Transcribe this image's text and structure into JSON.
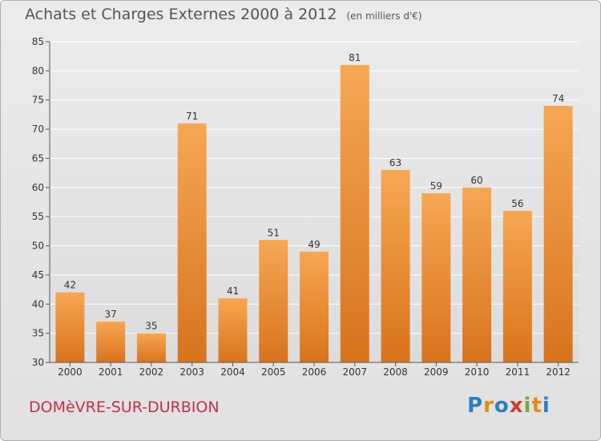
{
  "title": "Achats et Charges Externes 2000 à 2012",
  "unit_note": "(en milliers d'€)",
  "commune": "DOMèVRE-SUR-DURBION",
  "logo": {
    "letters": [
      "P",
      "r",
      "o",
      "x",
      "i",
      "t",
      "i"
    ],
    "colors": [
      "#2a7fc2",
      "#e28b1b",
      "#2a7fc2",
      "#d23b2a",
      "#7aa83a",
      "#e28b1b",
      "#2a7fc2"
    ]
  },
  "chart_data": {
    "type": "bar",
    "categories": [
      "2000",
      "2001",
      "2002",
      "2003",
      "2004",
      "2005",
      "2006",
      "2007",
      "2008",
      "2009",
      "2010",
      "2011",
      "2012"
    ],
    "values": [
      42,
      37,
      35,
      71,
      41,
      51,
      49,
      81,
      63,
      59,
      60,
      56,
      74
    ],
    "ylim": [
      30,
      85
    ],
    "yticks": [
      30,
      35,
      40,
      45,
      50,
      55,
      60,
      65,
      70,
      75,
      80,
      85
    ],
    "grid": true,
    "bar_color_top": "#f7a753",
    "bar_color_bottom": "#d9731c"
  }
}
